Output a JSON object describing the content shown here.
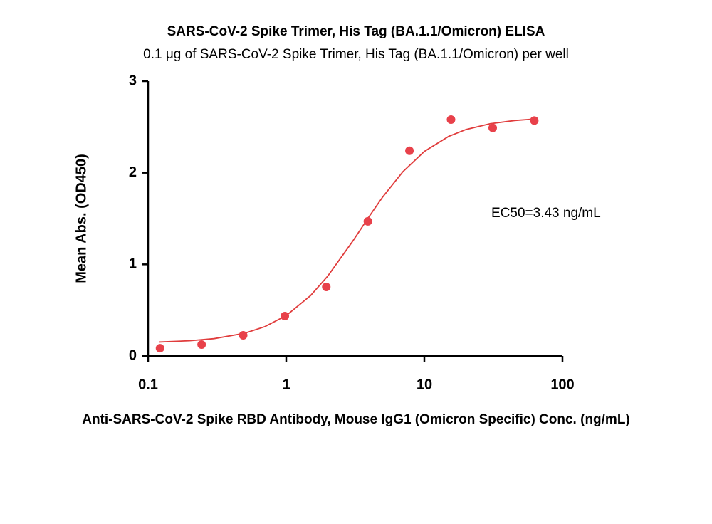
{
  "chart_data": {
    "type": "scatter",
    "title": "SARS-CoV-2 Spike Trimer, His Tag (BA.1.1/Omicron) ELISA",
    "subtitle": "0.1 μg of SARS-CoV-2 Spike Trimer, His Tag (BA.1.1/Omicron) per well",
    "x_label": "Anti-SARS-CoV-2 Spike RBD Antibody, Mouse IgG1 (Omicron Specific) Conc. (ng/mL)",
    "y_label": "Mean Abs. (OD450)",
    "annotation": "EC50=3.43 ng/mL",
    "x": [
      0.122,
      0.244,
      0.488,
      0.977,
      1.95,
      3.9,
      7.8,
      15.6,
      31.25,
      62.5
    ],
    "values": [
      0.085,
      0.124,
      0.225,
      0.435,
      0.754,
      1.47,
      2.24,
      2.58,
      2.49,
      2.57
    ],
    "color": "#e8414a",
    "fit": {
      "x": [
        0.12,
        0.2,
        0.3,
        0.5,
        0.7,
        1,
        1.5,
        2,
        3,
        4,
        5,
        7,
        10,
        15,
        20,
        30,
        45,
        62.5
      ],
      "values": [
        0.152,
        0.166,
        0.189,
        0.248,
        0.32,
        0.441,
        0.659,
        0.873,
        1.244,
        1.526,
        1.737,
        2.012,
        2.233,
        2.397,
        2.472,
        2.536,
        2.57,
        2.586
      ],
      "color": "#e03c3c"
    },
    "xscale": "log",
    "xlim": [
      0.1,
      100
    ],
    "xticks": [
      0.1,
      1,
      10,
      100
    ],
    "ylim": [
      0,
      3
    ],
    "yticks": [
      0,
      1,
      2,
      3
    ],
    "grid": false
  }
}
